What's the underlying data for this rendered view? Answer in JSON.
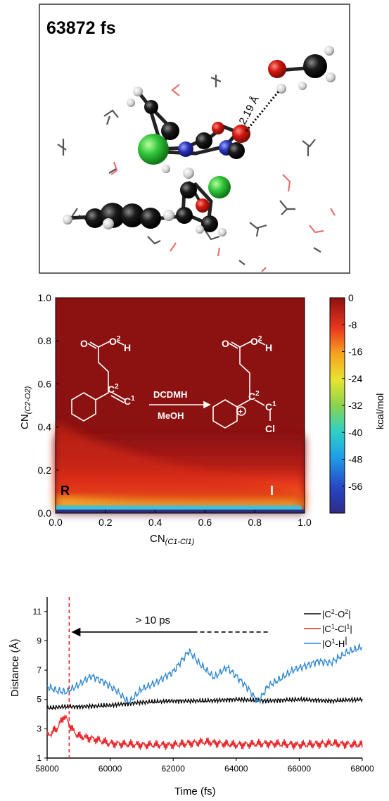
{
  "panel_a": {
    "label": "63872 fs",
    "hbond_label": "2.19 Å"
  },
  "chart_data": [
    {
      "type": "heatmap",
      "title": "",
      "xlabel_main": "CN",
      "xlabel_sub": "(C1-Cl1)",
      "ylabel_main": "CN",
      "ylabel_sub": "(C2-O2)",
      "xlim": [
        0.0,
        1.0
      ],
      "ylim": [
        0.0,
        1.0
      ],
      "x_ticks": [
        "0.0",
        "0.2",
        "0.4",
        "0.6",
        "0.8",
        "1.0"
      ],
      "y_ticks": [
        "0.0",
        "0.2",
        "0.4",
        "0.6",
        "0.8",
        "1.0"
      ],
      "colorbar": {
        "label": "kcal/mol",
        "range": [
          -64,
          0
        ],
        "ticks": [
          "0",
          "-8",
          "-16",
          "-24",
          "-32",
          "-40",
          "-48",
          "-56"
        ]
      },
      "annotations": [
        "R",
        "I"
      ],
      "scheme": {
        "reagent": "DCDMH",
        "solvent": "MeOH",
        "reactant": {
          "o_label": "O",
          "o_sup": "2",
          "h_label": "H",
          "c2_label": "C",
          "c2_sup": "2",
          "c1_label": "C",
          "c1_sup": "1"
        },
        "product": {
          "o_label": "O",
          "o_sup": "2",
          "h_label": "H",
          "c2_label": "C",
          "c2_sup": "2",
          "c1_label": "C",
          "c1_sup": "1",
          "cl_label": "Cl",
          "charge": "+"
        }
      }
    },
    {
      "type": "line",
      "title": "",
      "xlabel": "Time (fs)",
      "ylabel": "Distance (Å)",
      "xlim": [
        58000,
        68000
      ],
      "ylim": [
        1,
        12
      ],
      "x_ticks": [
        "58000",
        "60000",
        "62000",
        "64000",
        "66000",
        "68000"
      ],
      "y_ticks": [
        "1",
        "3",
        "5",
        "7",
        "9",
        "11"
      ],
      "vline_x": 58700,
      "arrow": {
        "label": "> 10 ps",
        "from_x": 65000,
        "to_x": 58800,
        "y": 9.6
      },
      "legend": [
        {
          "name": "|C",
          "sup1": "2",
          "mid": "-O",
          "sup2": "2",
          "end": "|",
          "color": "#000000"
        },
        {
          "name": "|C",
          "sup1": "1",
          "mid": "-Cl",
          "sup2": "1",
          "end": "|",
          "color": "#e8282b"
        },
        {
          "name": "|O",
          "sup1": "1",
          "mid": "-H",
          "sup2": "",
          "end": "|",
          "color": "#2e86d0"
        }
      ],
      "series": [
        {
          "key": "c2o2",
          "color": "#000000",
          "x": [
            58000,
            58500,
            59000,
            60000,
            61000,
            62000,
            63000,
            64000,
            65000,
            66000,
            67000,
            68000
          ],
          "y": [
            4.4,
            4.5,
            4.5,
            4.6,
            4.8,
            4.9,
            4.9,
            5.0,
            4.9,
            5.0,
            4.9,
            5.0
          ]
        },
        {
          "key": "c1cl1",
          "color": "#e8282b",
          "x": [
            58000,
            58300,
            58550,
            58700,
            58850,
            59000,
            59500,
            60000,
            61000,
            62000,
            63000,
            64000,
            65000,
            66000,
            67000,
            68000
          ],
          "y": [
            2.5,
            3.0,
            3.9,
            3.3,
            2.8,
            2.5,
            2.3,
            2.0,
            1.9,
            1.9,
            2.1,
            1.9,
            2.0,
            1.9,
            2.0,
            1.9
          ]
        },
        {
          "key": "o1h",
          "color": "#2e86d0",
          "x": [
            58000,
            58300,
            58600,
            59000,
            59400,
            59800,
            60200,
            60600,
            61000,
            61500,
            62000,
            62500,
            62900,
            63300,
            63700,
            64000,
            64400,
            64700,
            65000,
            65400,
            65800,
            66200,
            66600,
            67000,
            67500,
            68000
          ],
          "y": [
            5.9,
            5.6,
            5.5,
            6.0,
            6.6,
            6.2,
            5.6,
            4.8,
            5.7,
            6.2,
            6.9,
            8.3,
            7.3,
            6.5,
            7.2,
            6.6,
            5.7,
            4.8,
            5.9,
            6.4,
            7.0,
            7.3,
            7.6,
            7.5,
            8.2,
            8.6
          ]
        }
      ]
    }
  ]
}
